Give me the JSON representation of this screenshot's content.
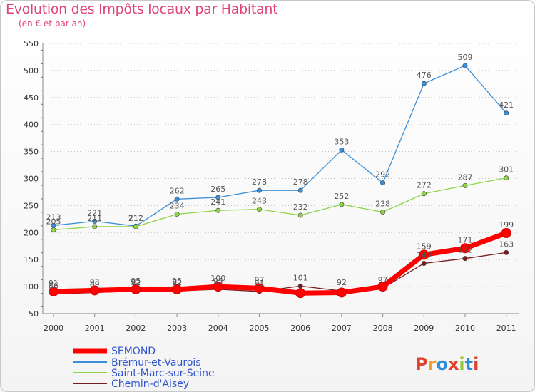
{
  "title": "Evolution des Impôts locaux par Habitant",
  "subtitle": "(en € et par an)",
  "logo_text": "Proxiti",
  "logo_colors": [
    "#e0412f",
    "#f0a030",
    "#2e8bd8",
    "#e0412f",
    "#9bc83a",
    "#2e8bd8",
    "#e0412f"
  ],
  "chart_data": {
    "type": "line",
    "x": [
      "2000",
      "2001",
      "2002",
      "2003",
      "2004",
      "2005",
      "2006",
      "2007",
      "2008",
      "2009",
      "2010",
      "2011"
    ],
    "ylim": [
      50,
      550
    ],
    "yticks": [
      50,
      100,
      150,
      200,
      250,
      300,
      350,
      400,
      450,
      500,
      550
    ],
    "grid": "horizontal-dotted",
    "legend_position": "bottom-left",
    "series": [
      {
        "name": "SEMOND",
        "color": "#ff0000",
        "values": [
          91,
          93,
          95,
          95,
          100,
          97,
          88,
          89,
          100,
          159,
          171,
          199
        ],
        "labels": [
          "91",
          "93",
          "95",
          "95",
          "100",
          "97",
          "",
          "",
          "",
          "159",
          "171",
          "199"
        ]
      },
      {
        "name": "Brémur-et-Vaurois",
        "color": "#3c8fd6",
        "values": [
          213,
          221,
          212,
          262,
          265,
          278,
          278,
          353,
          292,
          476,
          509,
          421
        ],
        "labels": [
          "213",
          "221",
          "212",
          "262",
          "265",
          "278",
          "278",
          "353",
          "292",
          "476",
          "509",
          "421"
        ]
      },
      {
        "name": "Saint-Marc-sur-Seine",
        "color": "#8fd448",
        "values": [
          205,
          211,
          211,
          234,
          241,
          243,
          232,
          252,
          238,
          272,
          287,
          301
        ],
        "labels": [
          "205",
          "211",
          "211",
          "234",
          "241",
          "243",
          "232",
          "252",
          "238",
          "272",
          "287",
          "301"
        ]
      },
      {
        "name": "Chemin-d'Aisey",
        "color": "#7a1c1c",
        "values": [
          86,
          89,
          92,
          92,
          95,
          91,
          101,
          92,
          97,
          143,
          152,
          163
        ],
        "labels": [
          "86",
          "89",
          "92",
          "92",
          "95",
          "91",
          "101",
          "92",
          "97",
          "143",
          "152",
          "163"
        ]
      }
    ]
  }
}
